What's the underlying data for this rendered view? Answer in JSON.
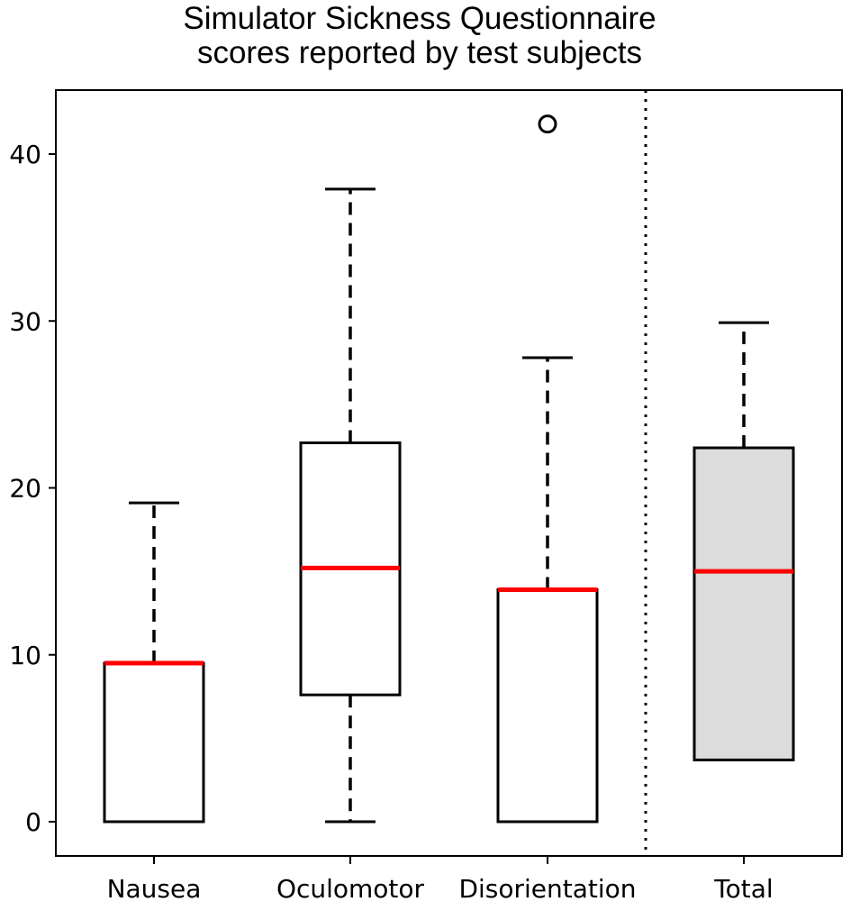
{
  "chart_data": {
    "type": "box",
    "title_lines": [
      "Simulator Sickness Questionnaire",
      "scores reported by test subjects"
    ],
    "xlabel": "",
    "ylabel": "",
    "categories": [
      "Nausea",
      "Oculomotor",
      "Disorientation",
      "Total"
    ],
    "boxes": [
      {
        "category": "Nausea",
        "whisker_low": 0,
        "q1": 0,
        "median": 9.5,
        "q3": 9.5,
        "whisker_high": 19.1,
        "outliers": [],
        "fill": "#ffffff"
      },
      {
        "category": "Oculomotor",
        "whisker_low": 0,
        "q1": 7.6,
        "median": 15.2,
        "q3": 22.7,
        "whisker_high": 37.9,
        "outliers": [],
        "fill": "#ffffff"
      },
      {
        "category": "Disorientation",
        "whisker_low": 0,
        "q1": 0,
        "median": 13.9,
        "q3": 13.9,
        "whisker_high": 27.8,
        "outliers": [
          41.8
        ],
        "fill": "#ffffff"
      },
      {
        "category": "Total",
        "whisker_low": 3.7,
        "q1": 3.7,
        "median": 15.0,
        "q3": 22.4,
        "whisker_high": 29.9,
        "outliers": [],
        "fill": "#dcdcdc"
      }
    ],
    "yticks": [
      0,
      10,
      20,
      30,
      40
    ],
    "ylim": [
      -2.1,
      43.8
    ],
    "grid": false,
    "separator": "dotted vertical line between Disorientation and Total",
    "colors": {
      "median": "#ff0000",
      "box_edge": "#000000"
    }
  }
}
